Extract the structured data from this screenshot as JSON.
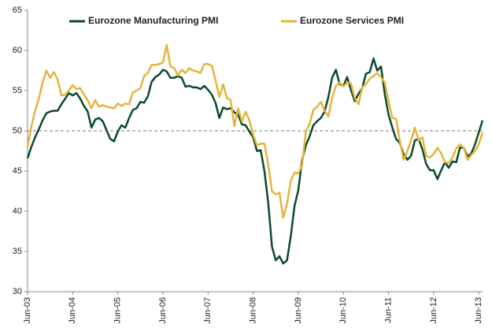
{
  "chart_data": {
    "type": "line",
    "categories": [
      "Jun-03",
      null,
      null,
      null,
      null,
      null,
      null,
      null,
      null,
      null,
      null,
      null,
      "Jun-04",
      null,
      null,
      null,
      null,
      null,
      null,
      null,
      null,
      null,
      null,
      null,
      "Jun-05",
      null,
      null,
      null,
      null,
      null,
      null,
      null,
      null,
      null,
      null,
      null,
      "Jun-06",
      null,
      null,
      null,
      null,
      null,
      null,
      null,
      null,
      null,
      null,
      null,
      "Jun-07",
      null,
      null,
      null,
      null,
      null,
      null,
      null,
      null,
      null,
      null,
      null,
      "Jun-08",
      null,
      null,
      null,
      null,
      null,
      null,
      null,
      null,
      null,
      null,
      null,
      "Jun-09",
      null,
      null,
      null,
      null,
      null,
      null,
      null,
      null,
      null,
      null,
      null,
      "Jun-10",
      null,
      null,
      null,
      null,
      null,
      null,
      null,
      null,
      null,
      null,
      null,
      "Jun-11",
      null,
      null,
      null,
      null,
      null,
      null,
      null,
      null,
      null,
      null,
      null,
      "Jun-12",
      null,
      null,
      null,
      null,
      null,
      null,
      null,
      null,
      null,
      null,
      null,
      "Jun-13",
      null
    ],
    "series": [
      {
        "name": "Eurozone Manufacturing PMI",
        "color": "#0b4a2c",
        "values": [
          46.6,
          48.0,
          49.2,
          50.2,
          51.3,
          52.2,
          52.4,
          52.5,
          52.5,
          53.3,
          54.0,
          54.7,
          54.4,
          54.7,
          54.0,
          53.1,
          52.4,
          50.4,
          51.4,
          51.6,
          51.2,
          50.1,
          49.0,
          48.7,
          49.9,
          50.7,
          50.4,
          51.6,
          52.6,
          52.8,
          53.6,
          53.5,
          54.3,
          56.1,
          56.7,
          57.0,
          57.6,
          57.4,
          56.6,
          56.6,
          56.8,
          56.6,
          55.5,
          55.6,
          55.4,
          55.4,
          55.2,
          55.6,
          55.1,
          54.5,
          53.5,
          51.6,
          52.9,
          52.7,
          52.8,
          52.3,
          52.0,
          50.8,
          50.7,
          49.9,
          49.2,
          47.5,
          47.6,
          45.0,
          41.1,
          35.6,
          33.9,
          34.4,
          33.5,
          33.9,
          36.9,
          40.7,
          42.6,
          46.3,
          48.2,
          49.3,
          50.7,
          51.2,
          51.6,
          52.4,
          54.2,
          56.6,
          57.6,
          55.8,
          55.6,
          56.7,
          55.1,
          53.7,
          54.6,
          55.3,
          57.1,
          57.3,
          59.0,
          57.5,
          58.0,
          54.6,
          52.0,
          50.4,
          49.0,
          48.5,
          47.1,
          46.4,
          46.9,
          48.8,
          49.0,
          47.7,
          45.9,
          45.1,
          45.1,
          44.0,
          45.1,
          46.1,
          45.4,
          46.2,
          46.1,
          47.9,
          47.9,
          46.8,
          47.2,
          48.3,
          49.8,
          51.3
        ]
      },
      {
        "name": "Eurozone Services PMI",
        "color": "#e6b43c",
        "values": [
          48.0,
          50.5,
          52.5,
          54.0,
          56.0,
          57.5,
          56.6,
          57.3,
          56.4,
          54.4,
          54.5,
          55.0,
          55.7,
          55.2,
          55.3,
          54.5,
          53.8,
          52.8,
          53.8,
          53.0,
          53.2,
          53.0,
          52.9,
          52.8,
          53.4,
          53.1,
          53.4,
          53.3,
          54.8,
          55.0,
          55.3,
          56.8,
          57.2,
          58.2,
          58.2,
          58.3,
          58.5,
          60.7,
          58.0,
          57.8,
          56.9,
          57.6,
          57.2,
          57.8,
          57.5,
          57.4,
          57.2,
          58.3,
          58.3,
          58.1,
          56.3,
          54.2,
          55.8,
          54.1,
          53.8,
          50.6,
          52.8,
          51.2,
          52.4,
          51.3,
          49.5,
          48.2,
          48.4,
          48.4,
          45.8,
          42.5,
          42.1,
          42.3,
          39.2,
          40.9,
          43.8,
          44.8,
          44.7,
          45.7,
          49.9,
          50.9,
          52.6,
          53.0,
          53.6,
          52.5,
          51.8,
          54.1,
          55.6,
          56.0,
          55.5,
          56.0,
          55.9,
          54.1,
          53.3,
          55.4,
          55.8,
          56.5,
          56.8,
          57.2,
          56.7,
          56.0,
          53.7,
          51.6,
          51.5,
          48.8,
          46.4,
          47.5,
          48.8,
          50.4,
          48.8,
          49.2,
          46.9,
          46.7,
          47.1,
          47.9,
          47.2,
          46.1,
          46.0,
          46.7,
          47.8,
          48.3,
          47.9,
          46.4,
          47.0,
          47.5,
          48.3,
          49.8
        ]
      }
    ],
    "ylim": [
      30,
      65
    ],
    "yticks": [
      30,
      35,
      40,
      45,
      50,
      55,
      60,
      65
    ],
    "reference_line": 50,
    "legend": "top"
  }
}
